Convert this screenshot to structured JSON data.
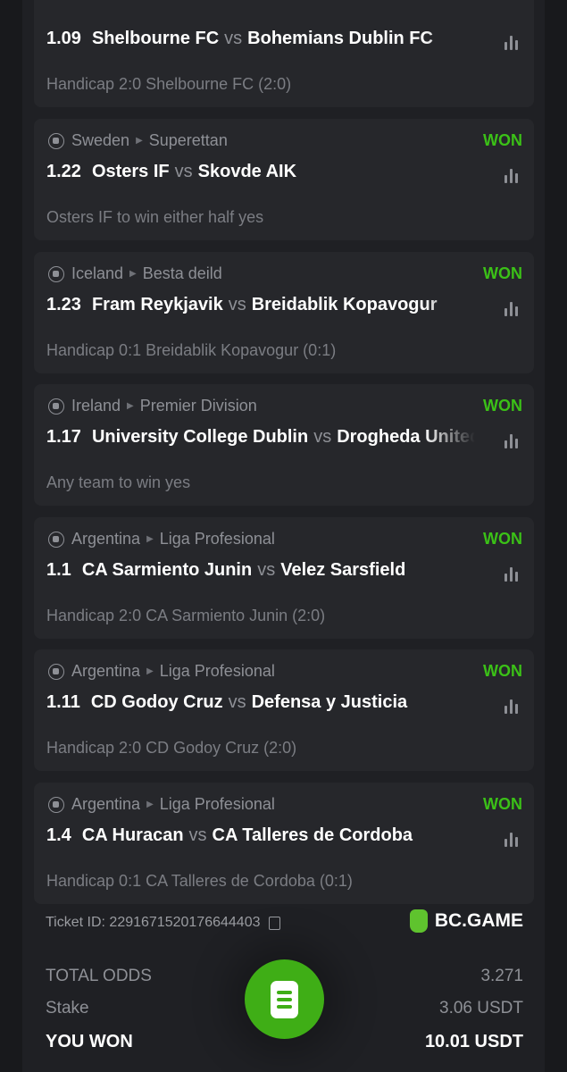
{
  "bets": [
    {
      "league": "",
      "country": "",
      "won": "",
      "odds": "1.09",
      "home": "Shelbourne FC",
      "away": "Bohemians Dublin FC",
      "market": "Handicap 2:0 Shelbourne FC (2:0)"
    },
    {
      "country": "Sweden",
      "league": "Superettan",
      "won": "WON",
      "odds": "1.22",
      "home": "Osters IF",
      "away": "Skovde AIK",
      "market": "Osters IF to win either half yes"
    },
    {
      "country": "Iceland",
      "league": "Besta deild",
      "won": "WON",
      "odds": "1.23",
      "home": "Fram Reykjavik",
      "away": "Breidablik Kopavogur",
      "market": "Handicap 0:1 Breidablik Kopavogur (0:1)"
    },
    {
      "country": "Ireland",
      "league": "Premier Division",
      "won": "WON",
      "odds": "1.17",
      "home": "University College Dublin",
      "away": "Drogheda United",
      "market": "Any team to win yes"
    },
    {
      "country": "Argentina",
      "league": "Liga Profesional",
      "won": "WON",
      "odds": "1.1",
      "home": "CA Sarmiento Junin",
      "away": "Velez Sarsfield",
      "market": "Handicap 2:0 CA Sarmiento Junin (2:0)"
    },
    {
      "country": "Argentina",
      "league": "Liga Profesional",
      "won": "WON",
      "odds": "1.11",
      "home": "CD Godoy Cruz",
      "away": "Defensa y Justicia",
      "market": "Handicap 2:0 CD Godoy Cruz (2:0)"
    },
    {
      "country": "Argentina",
      "league": "Liga Profesional",
      "won": "WON",
      "odds": "1.4",
      "home": "CA Huracan",
      "away": "CA Talleres de Cordoba",
      "market": "Handicap 0:1 CA Talleres de Cordoba (0:1)"
    }
  ],
  "vs": "vs",
  "ticket": {
    "label": "Ticket ID: 2291671520176644403"
  },
  "brand": "BC.GAME",
  "summary": {
    "total_odds_label": "TOTAL ODDS",
    "total_odds": "3.271",
    "stake_label": "Stake",
    "stake": "3.06 USDT",
    "won_label": "YOU WON",
    "won": "10.01 USDT"
  },
  "colors": {
    "accent": "#3bc117",
    "card": "#26272b",
    "background": "#1f2024"
  }
}
